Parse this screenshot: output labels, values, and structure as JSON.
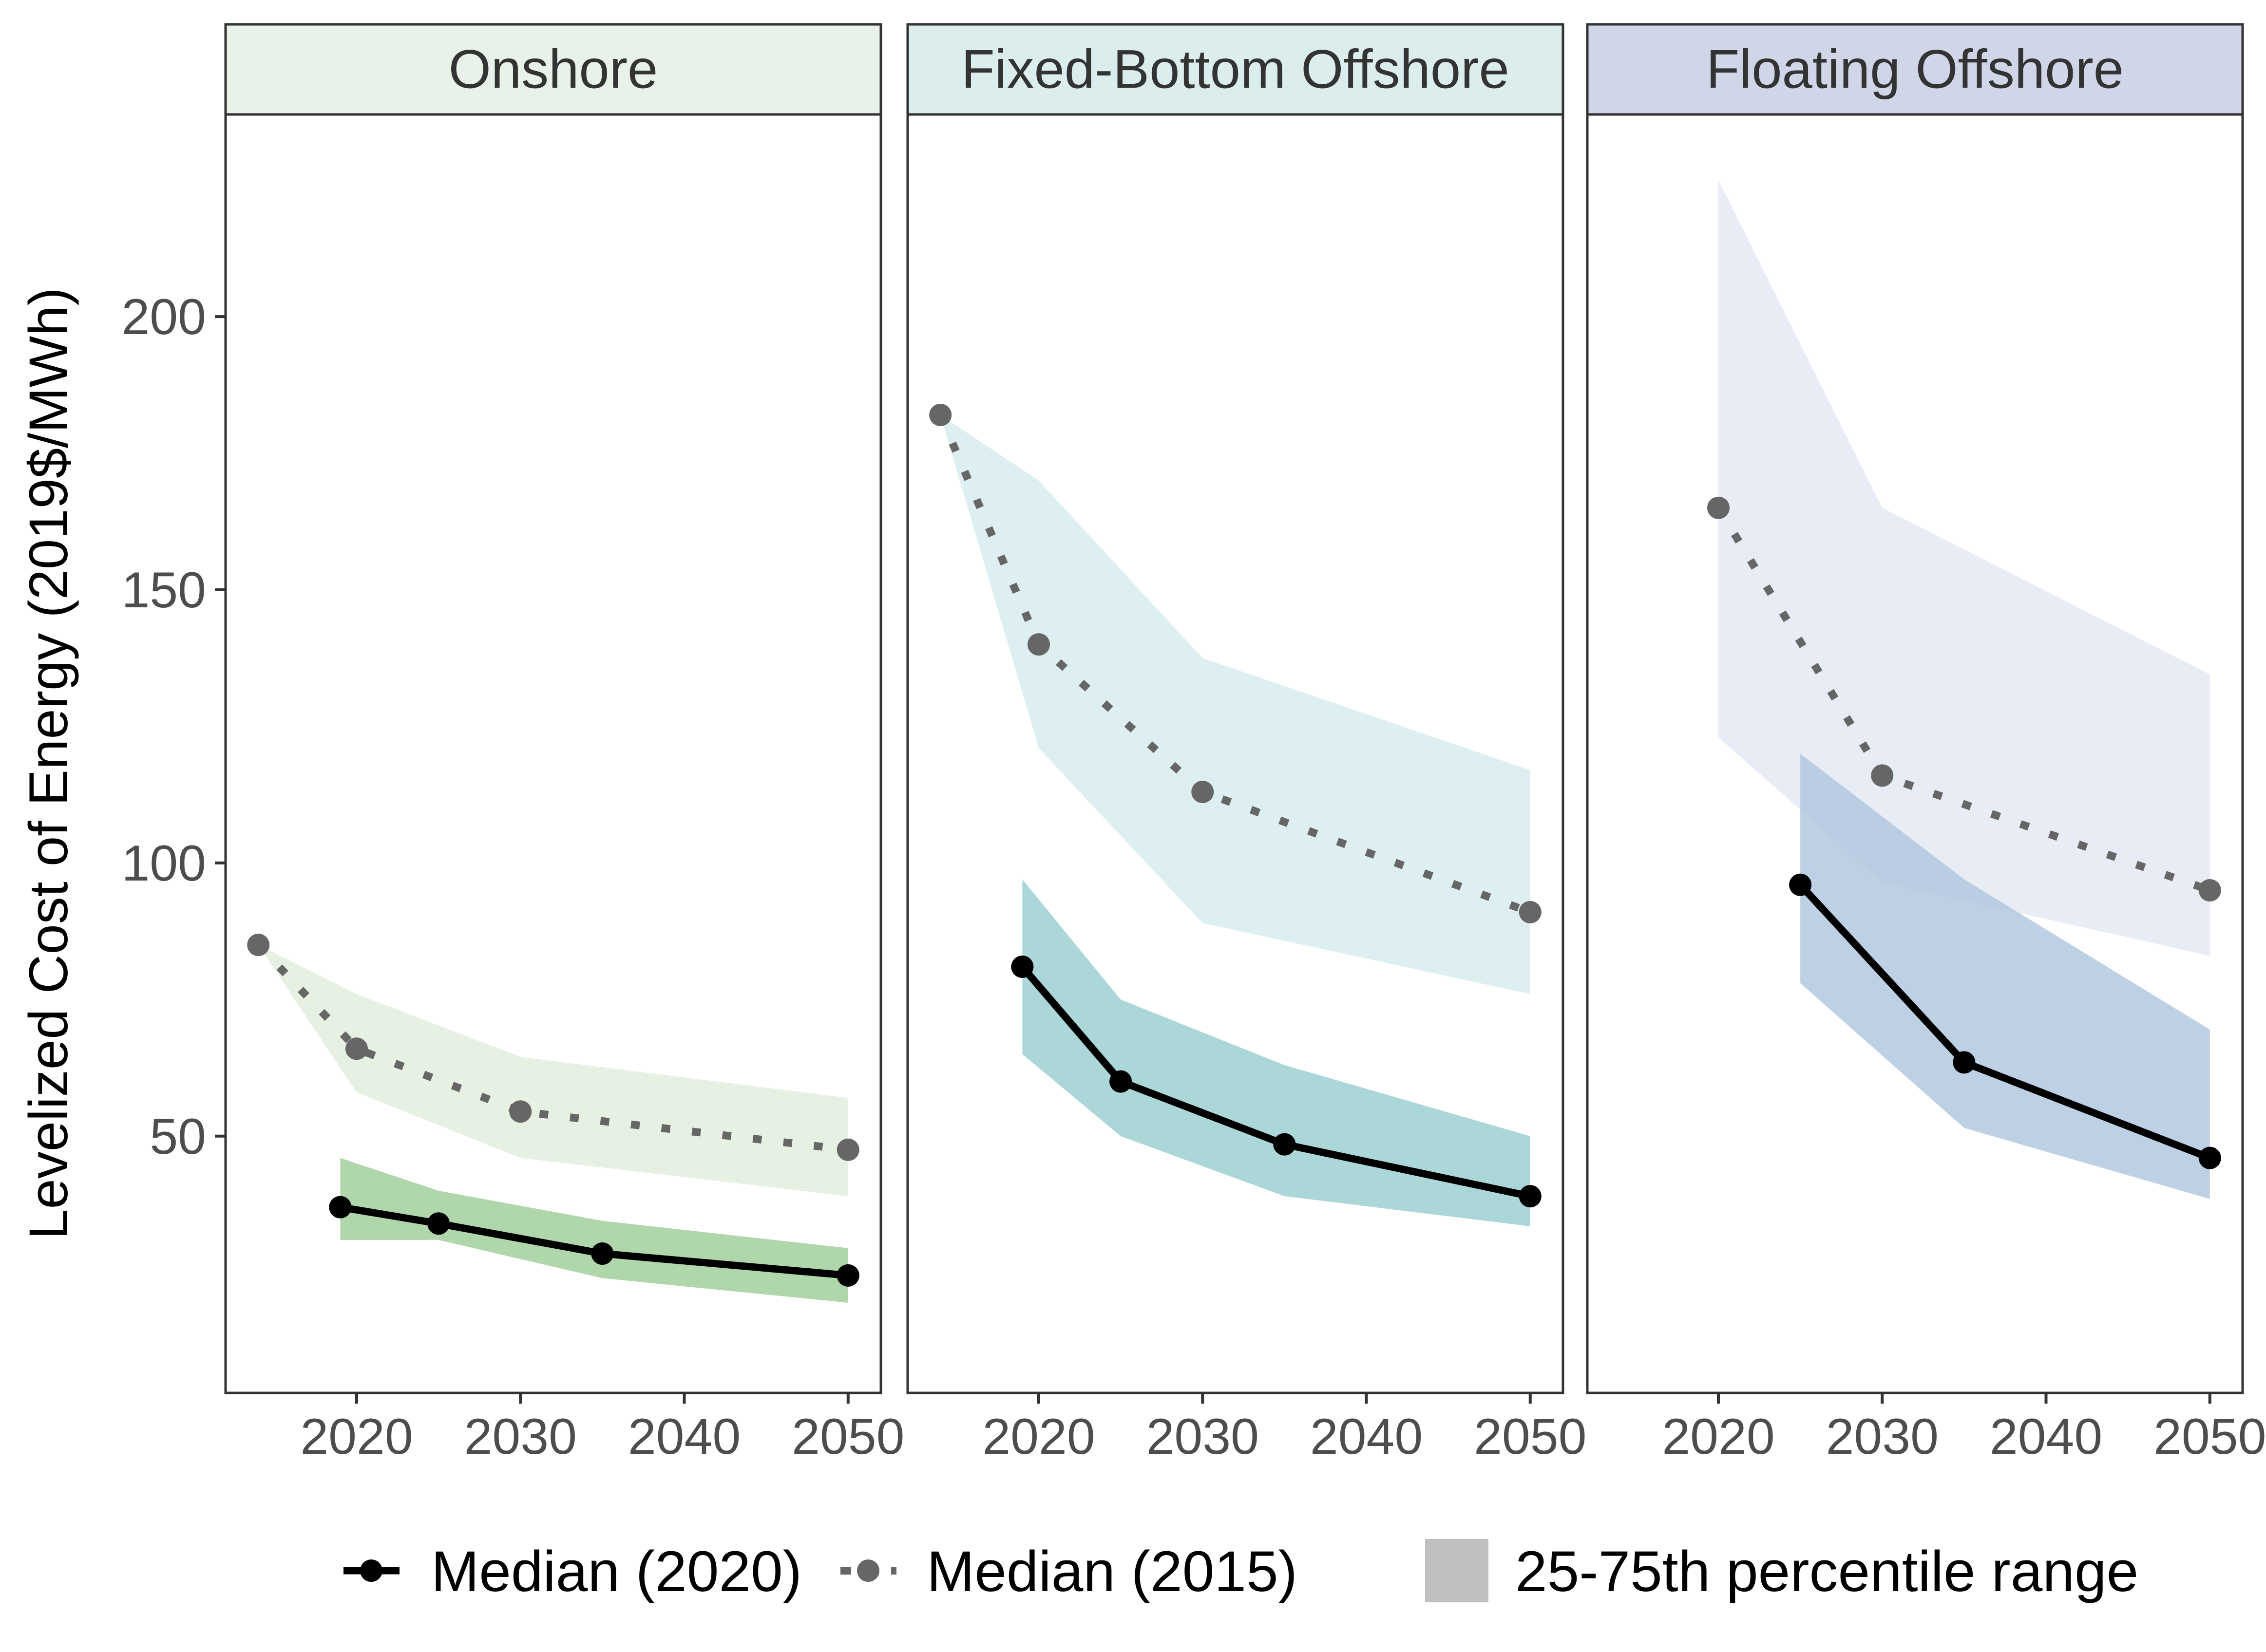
{
  "chart_data": {
    "type": "line",
    "ylabel": "Levelized Cost of Energy (2019$/MWh)",
    "xlabel": "",
    "y_ticks": [
      50,
      100,
      150,
      200
    ],
    "ylim": [
      3,
      237
    ],
    "x_ticks": [
      2020,
      2030,
      2040,
      2050
    ],
    "xlim": [
      2012,
      2052
    ],
    "grid": false,
    "legend": {
      "position": "bottom",
      "items": [
        {
          "key": "median2020",
          "label": "Median (2020)"
        },
        {
          "key": "median2015",
          "label": "Median (2015)"
        },
        {
          "key": "range",
          "label": "25-75th percentile range",
          "color": "#bfbfbf"
        }
      ]
    },
    "series_styles": {
      "median2020": {
        "color": "#000000",
        "line": "solid"
      },
      "median2015": {
        "color": "#666666",
        "line": "dotted"
      }
    },
    "panels": [
      {
        "title": "Onshore",
        "strip_color": "#e8f2e8",
        "band_2015_color": "#e2efdf",
        "band_2020_color": "#a2cf9c",
        "median_2020": {
          "x": [
            2019,
            2025,
            2035,
            2050
          ],
          "y": [
            37,
            34,
            28.5,
            24.5
          ]
        },
        "median_2015": {
          "x": [
            2014,
            2020,
            2030,
            2050
          ],
          "y": [
            85,
            66,
            54.5,
            47.5
          ]
        },
        "range_2020": {
          "x": [
            2019,
            2025,
            2035,
            2050
          ],
          "low": [
            31,
            31,
            24,
            19.5
          ],
          "high": [
            46,
            40,
            34.5,
            29.5
          ]
        },
        "range_2015": {
          "x": [
            2014,
            2020,
            2030,
            2050
          ],
          "low": [
            85,
            58,
            46,
            39
          ],
          "high": [
            85,
            76,
            64.5,
            57
          ]
        }
      },
      {
        "title": "Fixed-Bottom Offshore",
        "strip_color": "#dcedee",
        "band_2015_color": "#d8ecee",
        "band_2020_color": "#9dd0d2",
        "median_2020": {
          "x": [
            2019,
            2025,
            2035,
            2050
          ],
          "y": [
            81,
            60,
            48.5,
            39
          ]
        },
        "median_2015": {
          "x": [
            2014,
            2020,
            2030,
            2050
          ],
          "y": [
            182,
            140,
            113,
            91
          ]
        },
        "range_2020": {
          "x": [
            2019,
            2025,
            2035,
            2050
          ],
          "low": [
            65,
            50,
            39,
            33.5
          ],
          "high": [
            97,
            75,
            63,
            50
          ]
        },
        "range_2015": {
          "x": [
            2014,
            2020,
            2030,
            2050
          ],
          "low": [
            182,
            121,
            89,
            76
          ],
          "high": [
            182,
            170,
            137.5,
            117
          ]
        }
      },
      {
        "title": "Floating Offshore",
        "strip_color": "#d0d6e8",
        "band_2015_color": "#e3e9f3",
        "band_2020_color": "#b1c8df",
        "median_2020": {
          "x": [
            2025,
            2035,
            2050
          ],
          "y": [
            96,
            63.5,
            46
          ]
        },
        "median_2015": {
          "x": [
            2020,
            2030,
            2050
          ],
          "y": [
            165,
            116,
            95
          ]
        },
        "range_2020": {
          "x": [
            2025,
            2035,
            2050
          ],
          "low": [
            78,
            51.5,
            38.5
          ],
          "high": [
            120,
            97,
            69.5
          ]
        },
        "range_2015": {
          "x": [
            2020,
            2030,
            2050
          ],
          "low": [
            123,
            96.5,
            83
          ],
          "high": [
            225,
            165,
            134.5
          ]
        }
      }
    ]
  }
}
